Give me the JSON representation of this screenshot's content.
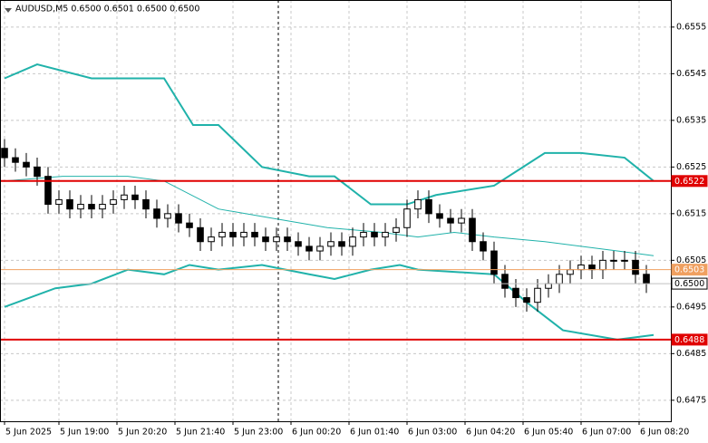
{
  "chart_data": {
    "type": "candlestick",
    "title": "AUDUSD,M5  0.6500 0.6501 0.6500 0.6500",
    "x": [
      0,
      3,
      6,
      9,
      12,
      15,
      18,
      21,
      24,
      27,
      30,
      33,
      36,
      39,
      42,
      45,
      48,
      51,
      54,
      57,
      60,
      63,
      66,
      69,
      72,
      75,
      78,
      81,
      84,
      87,
      90,
      93,
      96,
      99,
      102,
      105,
      108,
      111,
      114,
      117,
      120,
      123,
      126,
      129,
      132,
      135,
      138,
      141,
      144,
      147,
      150,
      153,
      156,
      159,
      162,
      165,
      168,
      171,
      174,
      177
    ],
    "open": [
      0.6529,
      0.6527,
      0.6526,
      0.6525,
      0.6523,
      0.6517,
      0.6518,
      0.6516,
      0.6517,
      0.6516,
      0.6517,
      0.6518,
      0.6519,
      0.6518,
      0.6516,
      0.6514,
      0.6515,
      0.6513,
      0.6512,
      0.6509,
      0.651,
      0.6511,
      0.651,
      0.6511,
      0.651,
      0.6509,
      0.651,
      0.6509,
      0.6508,
      0.6507,
      0.6508,
      0.6509,
      0.6508,
      0.651,
      0.6511,
      0.651,
      0.6511,
      0.6512,
      0.6516,
      0.6518,
      0.6515,
      0.6514,
      0.6513,
      0.6514,
      0.6509,
      0.6507,
      0.6502,
      0.6499,
      0.6497,
      0.6496,
      0.6499,
      0.65,
      0.6502,
      0.6503,
      0.6504,
      0.6503,
      0.6505,
      0.6505,
      0.6505,
      0.6502
    ],
    "high": [
      0.6531,
      0.6529,
      0.6528,
      0.6527,
      0.6525,
      0.652,
      0.652,
      0.6519,
      0.6519,
      0.6519,
      0.652,
      0.6521,
      0.6521,
      0.652,
      0.6518,
      0.6517,
      0.6517,
      0.6515,
      0.6514,
      0.6512,
      0.6513,
      0.6513,
      0.6513,
      0.6513,
      0.6512,
      0.6512,
      0.6512,
      0.6511,
      0.651,
      0.651,
      0.6511,
      0.6511,
      0.6512,
      0.6513,
      0.6513,
      0.6513,
      0.6514,
      0.6518,
      0.652,
      0.652,
      0.6517,
      0.6516,
      0.6516,
      0.6516,
      0.6511,
      0.6509,
      0.6504,
      0.6501,
      0.6499,
      0.6501,
      0.6502,
      0.6504,
      0.6505,
      0.6506,
      0.6506,
      0.6507,
      0.6507,
      0.6507,
      0.6507,
      0.6504
    ],
    "low": [
      0.6525,
      0.6524,
      0.6523,
      0.6521,
      0.6515,
      0.6515,
      0.6514,
      0.6514,
      0.6514,
      0.6514,
      0.6515,
      0.6516,
      0.6516,
      0.6514,
      0.6512,
      0.6512,
      0.6511,
      0.651,
      0.6507,
      0.6507,
      0.6508,
      0.6508,
      0.6508,
      0.6508,
      0.6507,
      0.6507,
      0.6507,
      0.6506,
      0.6505,
      0.6505,
      0.6506,
      0.6506,
      0.6506,
      0.6508,
      0.6508,
      0.6508,
      0.6509,
      0.651,
      0.6514,
      0.6513,
      0.6512,
      0.6511,
      0.6511,
      0.6507,
      0.6505,
      0.65,
      0.6497,
      0.6495,
      0.6494,
      0.6494,
      0.6497,
      0.6498,
      0.65,
      0.6501,
      0.6501,
      0.6501,
      0.6503,
      0.6503,
      0.65,
      0.6498
    ],
    "close": [
      0.6527,
      0.6526,
      0.6525,
      0.6523,
      0.6517,
      0.6518,
      0.6516,
      0.6517,
      0.6516,
      0.6517,
      0.6518,
      0.6519,
      0.6518,
      0.6516,
      0.6514,
      0.6515,
      0.6513,
      0.6512,
      0.6509,
      0.651,
      0.6511,
      0.651,
      0.6511,
      0.651,
      0.6509,
      0.651,
      0.6509,
      0.6508,
      0.6507,
      0.6508,
      0.6509,
      0.6508,
      0.651,
      0.6511,
      0.651,
      0.6511,
      0.6512,
      0.6516,
      0.6518,
      0.6515,
      0.6514,
      0.6513,
      0.6514,
      0.6509,
      0.6507,
      0.6502,
      0.6499,
      0.6497,
      0.6496,
      0.6499,
      0.65,
      0.6502,
      0.6503,
      0.6504,
      0.6503,
      0.6505,
      0.6505,
      0.6505,
      0.6502,
      0.65
    ],
    "bands": [
      {
        "color": "#20b2aa",
        "width": 2,
        "x": [
          0,
          9,
          24,
          44,
          52,
          59,
          71,
          84,
          91,
          101,
          111,
          119,
          135,
          141,
          149,
          159,
          171,
          179
        ],
        "values": [
          0.6544,
          0.6547,
          0.6544,
          0.6544,
          0.6534,
          0.6534,
          0.6525,
          0.6523,
          0.6523,
          0.6517,
          0.6517,
          0.6519,
          0.6521,
          0.6524,
          0.6528,
          0.6528,
          0.6527,
          0.6522
        ]
      },
      {
        "color": "#20b2aa",
        "width": 1,
        "x": [
          0,
          16,
          34,
          44,
          59,
          74,
          89,
          104,
          114,
          124,
          135,
          149,
          169,
          179
        ],
        "values": [
          0.6522,
          0.6523,
          0.6523,
          0.6522,
          0.6516,
          0.6514,
          0.6512,
          0.6511,
          0.651,
          0.6511,
          0.651,
          0.6509,
          0.6507,
          0.6506
        ]
      },
      {
        "color": "#20b2aa",
        "width": 2,
        "x": [
          0,
          14,
          24,
          34,
          44,
          51,
          59,
          71,
          84,
          91,
          101,
          109,
          114,
          135,
          144,
          154,
          169,
          179
        ],
        "values": [
          0.6495,
          0.6499,
          0.65,
          0.6503,
          0.6502,
          0.6504,
          0.6503,
          0.6504,
          0.6502,
          0.6501,
          0.6503,
          0.6504,
          0.6503,
          0.6502,
          0.6496,
          0.649,
          0.6488,
          0.6489
        ]
      }
    ],
    "hlines": [
      {
        "value": 0.6522,
        "label": "0.6522",
        "color": "#e00000",
        "label_fg": "#ffffff"
      },
      {
        "value": 0.6503,
        "label": "0.6503",
        "color": "#f0a060",
        "label_fg": "#ffffff"
      },
      {
        "value": 0.65,
        "label": "0.6500",
        "color": "#c0c0c0",
        "label_fg": "#000000"
      },
      {
        "value": 0.6488,
        "label": "0.6488",
        "color": "#e00000",
        "label_fg": "#ffffff"
      }
    ],
    "xlim": [
      -1.25,
      183.75
    ],
    "ylim": [
      0.64705,
      0.65608
    ],
    "yticks": [
      0.6555,
      0.6545,
      0.6535,
      0.6525,
      0.6515,
      0.6505,
      0.6495,
      0.6485,
      0.6475
    ],
    "xticks": [
      {
        "value": 0,
        "label": "5 Jun 2025"
      },
      {
        "value": 15,
        "label": "5 Jun 19:00"
      },
      {
        "value": 31,
        "label": "5 Jun 20:20"
      },
      {
        "value": 47,
        "label": "5 Jun 21:40"
      },
      {
        "value": 63,
        "label": "5 Jun 23:00"
      },
      {
        "value": 79,
        "label": "6 Jun 00:20"
      },
      {
        "value": 95,
        "label": "6 Jun 01:40"
      },
      {
        "value": 111,
        "label": "6 Jun 03:00"
      },
      {
        "value": 127,
        "label": "6 Jun 04:20"
      },
      {
        "value": 143,
        "label": "6 Jun 05:40"
      },
      {
        "value": 159,
        "label": "6 Jun 07:00"
      },
      {
        "value": 175,
        "label": "6 Jun 08:20"
      }
    ],
    "grid": true
  }
}
